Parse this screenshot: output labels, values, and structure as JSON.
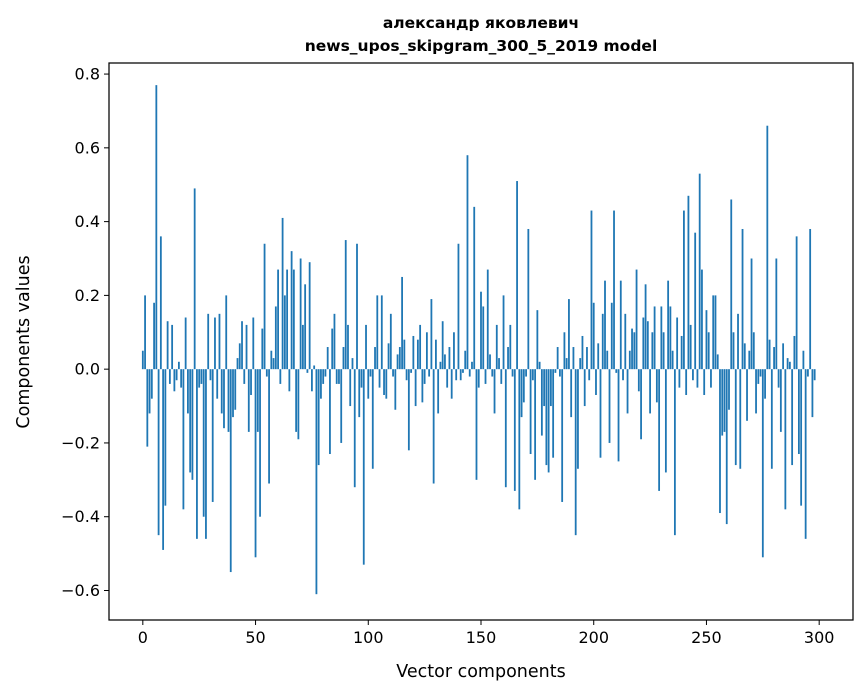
{
  "chart_data": {
    "type": "bar",
    "title_line1": "александр яковлевич",
    "title_line2": "news_upos_skipgram_300_5_2019 model",
    "xlabel": "Vector components",
    "ylabel": "Components values",
    "xlim": [
      -15,
      315
    ],
    "ylim": [
      -0.68,
      0.83
    ],
    "xticks": [
      0,
      50,
      100,
      150,
      200,
      250,
      300
    ],
    "xtick_labels": [
      "0",
      "50",
      "100",
      "150",
      "200",
      "250",
      "300"
    ],
    "yticks": [
      -0.6,
      -0.4,
      -0.2,
      0.0,
      0.2,
      0.4,
      0.6,
      0.8
    ],
    "ytick_labels": [
      "−0.6",
      "−0.4",
      "−0.2",
      "0.0",
      "0.2",
      "0.4",
      "0.6",
      "0.8"
    ],
    "bar_color": "#1f77b4",
    "values": [
      0.05,
      0.2,
      -0.21,
      -0.12,
      -0.08,
      0.18,
      0.77,
      -0.45,
      0.36,
      -0.49,
      -0.37,
      0.13,
      -0.04,
      0.12,
      -0.06,
      -0.03,
      0.02,
      -0.05,
      -0.38,
      0.14,
      -0.12,
      -0.28,
      -0.3,
      0.49,
      -0.46,
      -0.05,
      -0.04,
      -0.4,
      -0.46,
      0.15,
      -0.03,
      -0.36,
      0.14,
      -0.08,
      0.15,
      -0.12,
      -0.16,
      0.2,
      -0.17,
      -0.55,
      -0.13,
      -0.11,
      0.03,
      0.07,
      0.13,
      -0.04,
      0.12,
      -0.17,
      -0.07,
      0.14,
      -0.51,
      -0.17,
      -0.4,
      0.11,
      0.34,
      -0.02,
      -0.31,
      0.05,
      0.03,
      0.17,
      0.27,
      -0.04,
      0.41,
      0.2,
      0.27,
      -0.06,
      0.32,
      0.27,
      -0.17,
      -0.19,
      0.3,
      0.12,
      0.23,
      -0.01,
      0.29,
      -0.06,
      0.01,
      -0.61,
      -0.26,
      -0.08,
      -0.04,
      -0.02,
      0.06,
      -0.23,
      0.11,
      0.15,
      -0.04,
      -0.04,
      -0.2,
      0.06,
      0.35,
      0.12,
      -0.1,
      0.03,
      -0.32,
      0.34,
      -0.13,
      -0.05,
      -0.53,
      0.12,
      -0.08,
      -0.02,
      -0.27,
      0.06,
      0.2,
      -0.05,
      0.2,
      -0.07,
      -0.08,
      0.07,
      0.15,
      -0.02,
      -0.11,
      0.04,
      0.06,
      0.25,
      0.08,
      -0.03,
      -0.22,
      -0.01,
      0.09,
      -0.1,
      0.08,
      0.12,
      -0.09,
      -0.04,
      0.1,
      -0.02,
      0.19,
      -0.31,
      0.08,
      -0.12,
      0.02,
      0.13,
      0.04,
      -0.05,
      0.06,
      -0.08,
      0.1,
      -0.03,
      0.34,
      -0.03,
      -0.01,
      0.05,
      0.58,
      -0.02,
      0.02,
      0.44,
      -0.3,
      -0.05,
      0.21,
      0.17,
      -0.04,
      0.27,
      0.04,
      -0.02,
      -0.12,
      0.12,
      0.03,
      -0.04,
      0.2,
      -0.32,
      0.06,
      0.12,
      -0.02,
      -0.33,
      0.51,
      -0.38,
      -0.13,
      -0.09,
      -0.02,
      0.38,
      -0.23,
      -0.03,
      -0.3,
      0.16,
      0.02,
      -0.18,
      -0.1,
      -0.26,
      -0.28,
      -0.1,
      -0.24,
      -0.01,
      0.06,
      -0.02,
      -0.36,
      0.1,
      0.03,
      0.19,
      -0.13,
      0.06,
      -0.45,
      -0.27,
      0.03,
      0.09,
      -0.1,
      0.06,
      -0.03,
      0.43,
      0.18,
      -0.07,
      0.07,
      -0.24,
      0.15,
      0.24,
      0.05,
      -0.2,
      0.18,
      0.43,
      -0.01,
      -0.25,
      0.24,
      -0.03,
      0.15,
      -0.12,
      0.05,
      0.11,
      0.1,
      0.27,
      -0.06,
      -0.19,
      0.14,
      0.23,
      0.13,
      -0.12,
      0.1,
      0.17,
      -0.09,
      -0.33,
      0.17,
      0.1,
      -0.28,
      0.24,
      0.17,
      0.05,
      -0.45,
      0.14,
      -0.05,
      0.09,
      0.43,
      -0.07,
      0.47,
      0.12,
      -0.03,
      0.37,
      -0.05,
      0.53,
      0.27,
      -0.07,
      0.16,
      0.1,
      -0.05,
      0.2,
      0.2,
      0.04,
      -0.39,
      -0.18,
      -0.17,
      -0.42,
      -0.11,
      0.46,
      0.1,
      -0.26,
      0.15,
      -0.27,
      0.38,
      0.07,
      -0.14,
      0.05,
      0.3,
      0.1,
      -0.12,
      -0.04,
      -0.02,
      -0.51,
      -0.08,
      0.66,
      0.08,
      -0.27,
      0.06,
      0.3,
      -0.05,
      -0.17,
      0.07,
      -0.38,
      0.03,
      0.02,
      -0.26,
      0.09,
      0.36,
      -0.23,
      -0.37,
      0.05,
      -0.46,
      -0.02,
      0.38,
      -0.13,
      -0.03
    ]
  }
}
